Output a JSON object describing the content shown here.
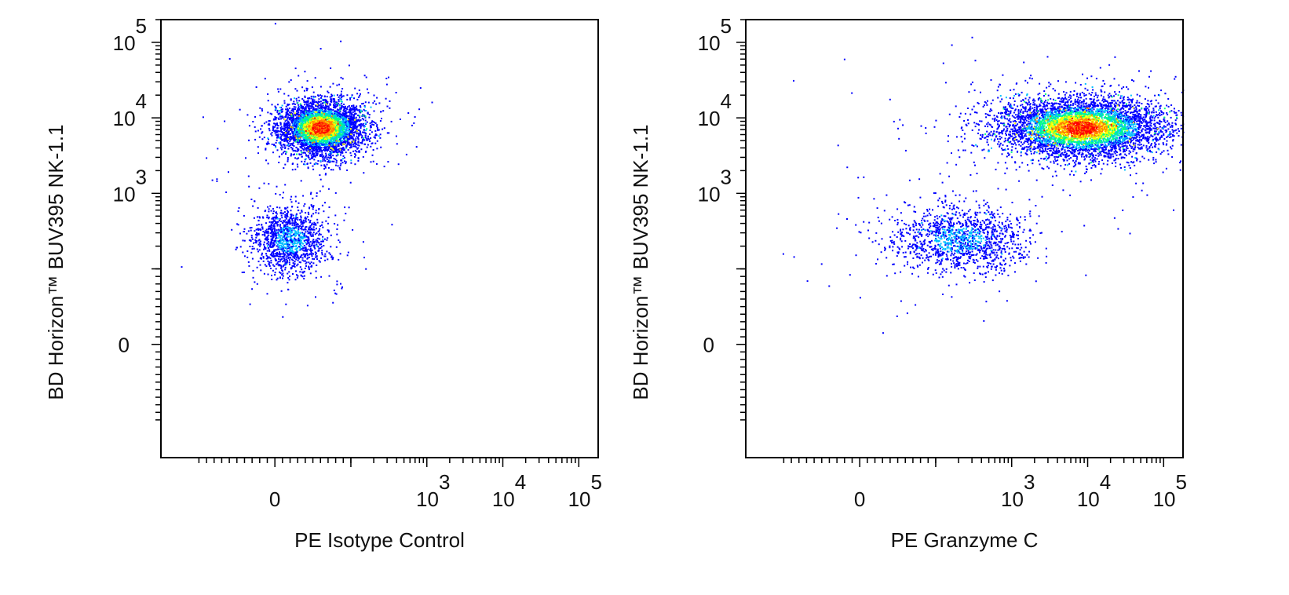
{
  "chart_data": [
    {
      "type": "scatter",
      "plot_style": "pseudocolor density dot plot",
      "xlabel": "PE Isotype Control",
      "ylabel": "BD Horizon™ BUV395 NK-1.1",
      "x_scale": "biexponential",
      "y_scale": "biexponential",
      "x_tick_labels": [
        {
          "base": "0",
          "exp": "",
          "value": 0
        },
        {
          "base": "10",
          "exp": "3",
          "value": 1000
        },
        {
          "base": "10",
          "exp": "4",
          "value": 10000
        },
        {
          "base": "10",
          "exp": "5",
          "value": 100000
        }
      ],
      "y_tick_labels": [
        {
          "base": "0",
          "exp": "",
          "value": 0
        },
        {
          "base": "10",
          "exp": "3",
          "value": 1000
        },
        {
          "base": "10",
          "exp": "4",
          "value": 10000
        },
        {
          "base": "10",
          "exp": "5",
          "value": 100000
        }
      ],
      "xlim": [
        -150,
        180000
      ],
      "ylim": [
        -150,
        200000
      ],
      "grid": false,
      "legend": "none",
      "density_colors": [
        "#0000ff",
        "#00bfff",
        "#00ff80",
        "#ffff00",
        "#ff8000",
        "#ff0000"
      ],
      "populations": [
        {
          "x_center": 60,
          "y_center": 7500,
          "spread_x": 0.28,
          "spread_y": 0.18,
          "events": 4200
        },
        {
          "x_center": 20,
          "y_center": 250,
          "spread_x": 0.25,
          "spread_y": 0.22,
          "events": 1300
        }
      ]
    },
    {
      "type": "scatter",
      "plot_style": "pseudocolor density dot plot",
      "xlabel": "PE Granzyme C",
      "ylabel": "BD Horizon™ BUV395 NK-1.1",
      "x_scale": "biexponential",
      "y_scale": "biexponential",
      "x_tick_labels": [
        {
          "base": "0",
          "exp": "",
          "value": 0
        },
        {
          "base": "10",
          "exp": "3",
          "value": 1000
        },
        {
          "base": "10",
          "exp": "4",
          "value": 10000
        },
        {
          "base": "10",
          "exp": "5",
          "value": 100000
        }
      ],
      "y_tick_labels": [
        {
          "base": "0",
          "exp": "",
          "value": 0
        },
        {
          "base": "10",
          "exp": "3",
          "value": 1000
        },
        {
          "base": "10",
          "exp": "4",
          "value": 10000
        },
        {
          "base": "10",
          "exp": "5",
          "value": 100000
        }
      ],
      "xlim": [
        -150,
        180000
      ],
      "ylim": [
        -150,
        200000
      ],
      "grid": false,
      "legend": "none",
      "density_colors": [
        "#0000ff",
        "#00bfff",
        "#00ff80",
        "#ffff00",
        "#ff8000",
        "#ff0000"
      ],
      "populations": [
        {
          "x_center": 8000,
          "y_center": 7500,
          "spread_x": 0.55,
          "spread_y": 0.2,
          "events": 5200
        },
        {
          "x_center": 200,
          "y_center": 250,
          "spread_x": 0.45,
          "spread_y": 0.22,
          "events": 1400
        }
      ]
    }
  ]
}
